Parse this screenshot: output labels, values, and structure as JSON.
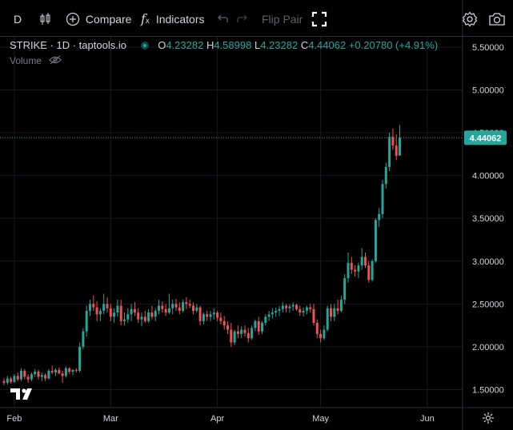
{
  "toolbar": {
    "interval": "D",
    "compare_label": "Compare",
    "indicators_label": "Indicators",
    "flip_pair_label": "Flip Pair"
  },
  "legend": {
    "symbol": "STRIKE · 1D · taptools.io",
    "open_label": "O",
    "open": "4.23282",
    "high_label": "H",
    "high": "4.58998",
    "low_label": "L",
    "low": "4.23282",
    "close_label": "C",
    "close": "4.44062",
    "change": "+0.20780 (+4.91%)"
  },
  "volume_label": "Volume",
  "colors": {
    "up": "#26a69a",
    "down": "#ef5350",
    "background": "#000000",
    "grid": "#161a22",
    "text": "#d1d4dc"
  },
  "chart_data": {
    "type": "candlestick",
    "y_ticks": [
      "1.50000",
      "2.00000",
      "2.50000",
      "3.00000",
      "3.50000",
      "4.00000",
      "4.50000",
      "5.00000",
      "5.50000"
    ],
    "y_range": [
      1.29,
      5.62
    ],
    "x_ticks": [
      {
        "label": "Feb",
        "day": 3
      },
      {
        "label": "Mar",
        "day": 31
      },
      {
        "label": "Apr",
        "day": 62
      },
      {
        "label": "May",
        "day": 92
      },
      {
        "label": "Jun",
        "day": 123
      }
    ],
    "last_price_label": "4.44062",
    "last_price": 4.44062,
    "candles": [
      [
        1.6,
        1.63,
        1.55,
        1.58
      ],
      [
        1.58,
        1.66,
        1.56,
        1.63
      ],
      [
        1.63,
        1.65,
        1.57,
        1.59
      ],
      [
        1.59,
        1.68,
        1.58,
        1.66
      ],
      [
        1.66,
        1.7,
        1.6,
        1.62
      ],
      [
        1.62,
        1.75,
        1.6,
        1.72
      ],
      [
        1.72,
        1.74,
        1.62,
        1.65
      ],
      [
        1.65,
        1.68,
        1.58,
        1.62
      ],
      [
        1.62,
        1.7,
        1.6,
        1.68
      ],
      [
        1.68,
        1.74,
        1.65,
        1.71
      ],
      [
        1.71,
        1.73,
        1.62,
        1.65
      ],
      [
        1.65,
        1.7,
        1.6,
        1.67
      ],
      [
        1.67,
        1.69,
        1.6,
        1.63
      ],
      [
        1.63,
        1.74,
        1.62,
        1.72
      ],
      [
        1.72,
        1.78,
        1.68,
        1.7
      ],
      [
        1.7,
        1.75,
        1.66,
        1.73
      ],
      [
        1.73,
        1.76,
        1.68,
        1.69
      ],
      [
        1.69,
        1.72,
        1.58,
        1.66
      ],
      [
        1.66,
        1.77,
        1.64,
        1.75
      ],
      [
        1.75,
        1.76,
        1.68,
        1.71
      ],
      [
        1.71,
        1.74,
        1.67,
        1.73
      ],
      [
        1.73,
        1.75,
        1.7,
        1.72
      ],
      [
        1.72,
        2.05,
        1.7,
        2.0
      ],
      [
        2.0,
        2.22,
        1.97,
        2.18
      ],
      [
        2.18,
        2.48,
        2.12,
        2.42
      ],
      [
        2.42,
        2.55,
        2.36,
        2.5
      ],
      [
        2.5,
        2.6,
        2.42,
        2.46
      ],
      [
        2.46,
        2.53,
        2.3,
        2.38
      ],
      [
        2.38,
        2.45,
        2.3,
        2.42
      ],
      [
        2.42,
        2.62,
        2.38,
        2.5
      ],
      [
        2.5,
        2.58,
        2.4,
        2.45
      ],
      [
        2.45,
        2.5,
        2.3,
        2.35
      ],
      [
        2.35,
        2.45,
        2.28,
        2.4
      ],
      [
        2.4,
        2.55,
        2.35,
        2.48
      ],
      [
        2.48,
        2.55,
        2.25,
        2.3
      ],
      [
        2.3,
        2.4,
        2.25,
        2.32
      ],
      [
        2.32,
        2.45,
        2.28,
        2.38
      ],
      [
        2.38,
        2.5,
        2.3,
        2.44
      ],
      [
        2.44,
        2.52,
        2.36,
        2.4
      ],
      [
        2.4,
        2.45,
        2.28,
        2.32
      ],
      [
        2.32,
        2.4,
        2.24,
        2.35
      ],
      [
        2.35,
        2.42,
        2.28,
        2.3
      ],
      [
        2.3,
        2.44,
        2.28,
        2.4
      ],
      [
        2.4,
        2.48,
        2.32,
        2.35
      ],
      [
        2.35,
        2.45,
        2.3,
        2.42
      ],
      [
        2.42,
        2.55,
        2.38,
        2.48
      ],
      [
        2.48,
        2.53,
        2.4,
        2.44
      ],
      [
        2.44,
        2.5,
        2.36,
        2.4
      ],
      [
        2.4,
        2.62,
        2.38,
        2.45
      ],
      [
        2.45,
        2.55,
        2.38,
        2.5
      ],
      [
        2.5,
        2.56,
        2.42,
        2.46
      ],
      [
        2.46,
        2.52,
        2.38,
        2.42
      ],
      [
        2.42,
        2.55,
        2.4,
        2.52
      ],
      [
        2.52,
        2.58,
        2.44,
        2.5
      ],
      [
        2.5,
        2.55,
        2.45,
        2.48
      ],
      [
        2.48,
        2.52,
        2.38,
        2.42
      ],
      [
        2.42,
        2.5,
        2.4,
        2.46
      ],
      [
        2.46,
        2.48,
        2.25,
        2.3
      ],
      [
        2.3,
        2.4,
        2.26,
        2.38
      ],
      [
        2.38,
        2.42,
        2.3,
        2.35
      ],
      [
        2.35,
        2.42,
        2.3,
        2.38
      ],
      [
        2.38,
        2.45,
        2.32,
        2.4
      ],
      [
        2.4,
        2.42,
        2.3,
        2.34
      ],
      [
        2.34,
        2.4,
        2.26,
        2.3
      ],
      [
        2.3,
        2.36,
        2.2,
        2.25
      ],
      [
        2.25,
        2.3,
        2.15,
        2.2
      ],
      [
        2.2,
        2.28,
        2.0,
        2.05
      ],
      [
        2.05,
        2.2,
        2.02,
        2.18
      ],
      [
        2.18,
        2.25,
        2.1,
        2.15
      ],
      [
        2.15,
        2.24,
        2.1,
        2.2
      ],
      [
        2.2,
        2.25,
        2.12,
        2.16
      ],
      [
        2.16,
        2.22,
        2.05,
        2.1
      ],
      [
        2.1,
        2.25,
        2.08,
        2.22
      ],
      [
        2.22,
        2.32,
        2.18,
        2.3
      ],
      [
        2.3,
        2.35,
        2.14,
        2.18
      ],
      [
        2.18,
        2.3,
        2.15,
        2.28
      ],
      [
        2.28,
        2.38,
        2.25,
        2.35
      ],
      [
        2.35,
        2.42,
        2.3,
        2.38
      ],
      [
        2.38,
        2.45,
        2.33,
        2.4
      ],
      [
        2.4,
        2.46,
        2.35,
        2.42
      ],
      [
        2.42,
        2.48,
        2.36,
        2.44
      ],
      [
        2.44,
        2.52,
        2.4,
        2.48
      ],
      [
        2.48,
        2.5,
        2.4,
        2.45
      ],
      [
        2.45,
        2.5,
        2.4,
        2.47
      ],
      [
        2.47,
        2.52,
        2.42,
        2.49
      ],
      [
        2.49,
        2.5,
        2.42,
        2.44
      ],
      [
        2.44,
        2.48,
        2.36,
        2.4
      ],
      [
        2.4,
        2.46,
        2.35,
        2.42
      ],
      [
        2.42,
        2.48,
        2.38,
        2.46
      ],
      [
        2.46,
        2.5,
        2.4,
        2.44
      ],
      [
        2.44,
        2.5,
        2.25,
        2.28
      ],
      [
        2.28,
        2.32,
        2.1,
        2.15
      ],
      [
        2.15,
        2.2,
        2.05,
        2.1
      ],
      [
        2.1,
        2.25,
        2.08,
        2.2
      ],
      [
        2.2,
        2.48,
        2.18,
        2.45
      ],
      [
        2.45,
        2.5,
        2.3,
        2.35
      ],
      [
        2.35,
        2.5,
        2.3,
        2.45
      ],
      [
        2.45,
        2.55,
        2.38,
        2.42
      ],
      [
        2.42,
        2.6,
        2.4,
        2.55
      ],
      [
        2.55,
        2.85,
        2.5,
        2.8
      ],
      [
        2.8,
        3.1,
        2.75,
        2.98
      ],
      [
        2.98,
        3.05,
        2.85,
        2.9
      ],
      [
        2.9,
        2.95,
        2.82,
        2.88
      ],
      [
        2.88,
        2.98,
        2.8,
        2.95
      ],
      [
        2.95,
        3.15,
        2.9,
        3.05
      ],
      [
        3.05,
        3.1,
        2.92,
        2.95
      ],
      [
        2.95,
        3.0,
        2.75,
        2.78
      ],
      [
        2.78,
        3.02,
        2.76,
        3.0
      ],
      [
        3.0,
        3.5,
        2.98,
        3.48
      ],
      [
        3.48,
        3.62,
        3.4,
        3.55
      ],
      [
        3.55,
        3.95,
        3.5,
        3.9
      ],
      [
        3.9,
        4.15,
        3.85,
        4.1
      ],
      [
        4.1,
        4.5,
        4.05,
        4.45
      ],
      [
        4.45,
        4.55,
        4.3,
        4.35
      ],
      [
        4.35,
        4.48,
        4.18,
        4.23
      ],
      [
        4.23282,
        4.58998,
        4.23282,
        4.44062
      ]
    ]
  }
}
